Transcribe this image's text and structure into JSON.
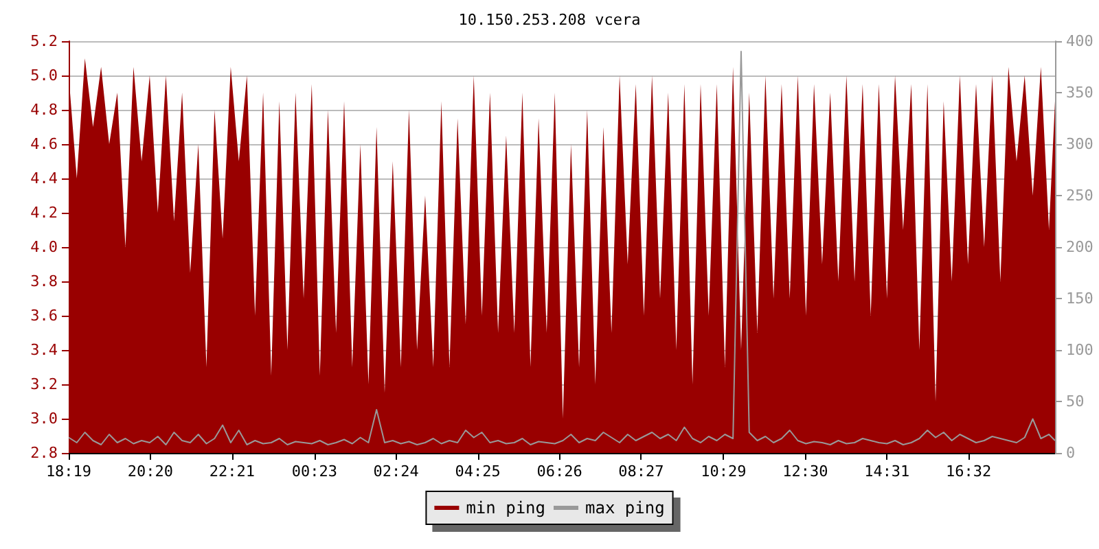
{
  "chart_data": {
    "type": "area",
    "title": "10.150.253.208 vcera",
    "x": [
      "--01-01T18:19",
      "--01-01T18:31",
      "--01-01T18:43",
      "--01-01T18:55",
      "--01-01T19:07",
      "--01-01T19:19",
      "--01-01T19:31",
      "--01-01T19:43",
      "--01-01T19:55",
      "--01-01T20:07",
      "--01-01T20:19",
      "--01-01T20:31",
      "--01-01T20:43",
      "--01-01T20:55",
      "--01-01T21:07",
      "--01-01T21:19",
      "--01-01T21:31",
      "--01-01T21:43",
      "--01-01T21:55",
      "--01-01T22:07",
      "--01-01T22:19",
      "--01-01T22:31",
      "--01-01T22:43",
      "--01-01T22:55",
      "--01-01T23:07",
      "--01-01T23:19",
      "--01-01T23:31",
      "--01-01T23:43",
      "--01-01T23:55",
      "--01-02T00:07",
      "--01-02T00:19",
      "--01-02T00:31",
      "--01-02T00:43",
      "--01-02T00:55",
      "--01-02T01:07",
      "--01-02T01:19",
      "--01-02T01:31",
      "--01-02T01:43",
      "--01-02T01:55",
      "--01-02T02:07",
      "--01-02T02:19",
      "--01-02T02:31",
      "--01-02T02:43",
      "--01-02T02:55",
      "--01-02T03:07",
      "--01-02T03:19",
      "--01-02T03:31",
      "--01-02T03:43",
      "--01-02T03:55",
      "--01-02T04:07",
      "--01-02T04:19",
      "--01-02T04:31",
      "--01-02T04:43",
      "--01-02T04:55",
      "--01-02T05:07",
      "--01-02T05:19",
      "--01-02T05:31",
      "--01-02T05:43",
      "--01-02T05:55",
      "--01-02T06:07",
      "--01-02T06:19",
      "--01-02T06:31",
      "--01-02T06:43",
      "--01-02T06:55",
      "--01-02T07:07",
      "--01-02T07:19",
      "--01-02T07:31",
      "--01-02T07:43",
      "--01-02T07:55",
      "--01-02T08:07",
      "--01-02T08:19",
      "--01-02T08:31",
      "--01-02T08:43",
      "--01-02T08:55",
      "--01-02T09:07",
      "--01-02T09:19",
      "--01-02T09:31",
      "--01-02T09:43",
      "--01-02T09:55",
      "--01-02T10:07",
      "--01-02T10:19",
      "--01-02T10:31",
      "--01-02T10:43",
      "--01-02T10:55",
      "--01-02T11:07",
      "--01-02T11:19",
      "--01-02T11:31",
      "--01-02T11:43",
      "--01-02T11:55",
      "--01-02T12:07",
      "--01-02T12:19",
      "--01-02T12:31",
      "--01-02T12:43",
      "--01-02T12:55",
      "--01-02T13:07",
      "--01-02T13:19",
      "--01-02T13:31",
      "--01-02T13:43",
      "--01-02T13:55",
      "--01-02T14:07",
      "--01-02T14:19",
      "--01-02T14:31",
      "--01-02T14:43",
      "--01-02T14:55",
      "--01-02T15:07",
      "--01-02T15:19",
      "--01-02T15:31",
      "--01-02T15:43",
      "--01-02T15:55",
      "--01-02T16:07",
      "--01-02T16:19",
      "--01-02T16:31",
      "--01-02T16:43",
      "--01-02T16:55",
      "--01-02T17:07",
      "--01-02T17:19",
      "--01-02T17:31",
      "--01-02T17:43",
      "--01-02T17:55",
      "--01-02T18:07",
      "--01-02T18:19",
      "--01-02T18:31",
      "--01-02T18:40"
    ],
    "series": [
      {
        "name": "min ping",
        "color": "#990000",
        "values": [
          5.0,
          4.4,
          5.1,
          4.7,
          5.05,
          4.6,
          4.9,
          4.0,
          5.05,
          4.5,
          5.0,
          4.2,
          5.0,
          4.15,
          4.9,
          3.85,
          4.6,
          3.3,
          4.8,
          4.05,
          5.05,
          4.5,
          5.0,
          3.6,
          4.9,
          3.25,
          4.85,
          3.4,
          4.9,
          3.7,
          4.95,
          3.25,
          4.8,
          3.5,
          4.85,
          3.3,
          4.6,
          3.2,
          4.7,
          3.15,
          4.5,
          3.3,
          4.8,
          3.4,
          4.3,
          3.3,
          4.85,
          3.3,
          4.75,
          3.55,
          5.0,
          3.6,
          4.9,
          3.5,
          4.65,
          3.5,
          4.9,
          3.3,
          4.75,
          3.5,
          4.9,
          3.0,
          4.6,
          3.3,
          4.8,
          3.2,
          4.7,
          3.5,
          5.0,
          3.9,
          4.95,
          3.6,
          5.0,
          3.7,
          4.9,
          3.4,
          4.95,
          3.2,
          4.95,
          3.6,
          4.95,
          3.3,
          5.05,
          3.4,
          4.9,
          3.5,
          5.0,
          3.7,
          4.95,
          3.7,
          5.0,
          3.6,
          4.95,
          3.9,
          4.9,
          3.8,
          5.0,
          3.8,
          4.95,
          3.6,
          4.95,
          3.7,
          5.0,
          4.1,
          4.95,
          3.4,
          4.95,
          3.1,
          4.85,
          3.8,
          5.0,
          3.9,
          4.95,
          4.0,
          5.0,
          3.8,
          5.05,
          4.5,
          5.0,
          4.3,
          5.05,
          4.1,
          4.85
        ]
      },
      {
        "name": "max ping",
        "color": "#999999",
        "type": "line",
        "axis": "y2",
        "values": [
          15,
          10,
          20,
          12,
          8,
          18,
          10,
          14,
          9,
          12,
          10,
          16,
          8,
          20,
          12,
          10,
          18,
          9,
          14,
          27,
          10,
          22,
          8,
          12,
          9,
          10,
          14,
          8,
          11,
          10,
          9,
          12,
          8,
          10,
          13,
          9,
          15,
          10,
          42,
          10,
          12,
          9,
          11,
          8,
          10,
          14,
          9,
          12,
          10,
          22,
          15,
          20,
          10,
          12,
          9,
          10,
          14,
          8,
          11,
          10,
          9,
          12,
          18,
          10,
          14,
          12,
          20,
          15,
          10,
          18,
          12,
          16,
          20,
          14,
          18,
          12,
          25,
          14,
          10,
          16,
          12,
          18,
          14,
          390,
          20,
          12,
          16,
          10,
          14,
          22,
          12,
          9,
          11,
          10,
          8,
          12,
          9,
          10,
          14,
          12,
          10,
          9,
          12,
          8,
          10,
          14,
          22,
          15,
          20,
          12,
          18,
          14,
          10,
          12,
          16,
          14,
          12,
          10,
          15,
          33,
          14,
          18,
          12
        ]
      }
    ],
    "xticks": [
      {
        "value": "--01-01T18:19",
        "label": "18:19"
      },
      {
        "value": "--01-01T20:20",
        "label": "20:20"
      },
      {
        "value": "--01-01T22:21",
        "label": "22:21"
      },
      {
        "value": "--01-02T00:23",
        "label": "00:23"
      },
      {
        "value": "--01-02T02:24",
        "label": "02:24"
      },
      {
        "value": "--01-02T04:25",
        "label": "04:25"
      },
      {
        "value": "--01-02T06:26",
        "label": "06:26"
      },
      {
        "value": "--01-02T08:27",
        "label": "08:27"
      },
      {
        "value": "--01-02T10:29",
        "label": "10:29"
      },
      {
        "value": "--01-02T12:30",
        "label": "12:30"
      },
      {
        "value": "--01-02T14:31",
        "label": "14:31"
      },
      {
        "value": "--01-02T16:32",
        "label": "16:32"
      }
    ],
    "xlim": [
      "--01-01T18:19",
      "--01-02T18:40"
    ],
    "ylim": [
      2.8,
      5.2
    ],
    "yticks": [
      {
        "value": 2.8,
        "label": "2.8"
      },
      {
        "value": 3.0,
        "label": "3.0"
      },
      {
        "value": 3.2,
        "label": "3.2"
      },
      {
        "value": 3.4,
        "label": "3.4"
      },
      {
        "value": 3.6,
        "label": "3.6"
      },
      {
        "value": 3.8,
        "label": "3.8"
      },
      {
        "value": 4.0,
        "label": "4.0"
      },
      {
        "value": 4.2,
        "label": "4.2"
      },
      {
        "value": 4.4,
        "label": "4.4"
      },
      {
        "value": 4.6,
        "label": "4.6"
      },
      {
        "value": 4.8,
        "label": "4.8"
      },
      {
        "value": 5.0,
        "label": "5.0"
      },
      {
        "value": 5.2,
        "label": "5.2"
      }
    ],
    "y2lim": [
      0,
      400
    ],
    "y2ticks": [
      0,
      50,
      100,
      150,
      200,
      250,
      300,
      350,
      400
    ],
    "grid": "y",
    "legend": "bottom",
    "marker": "none",
    "line_style": "solid"
  }
}
